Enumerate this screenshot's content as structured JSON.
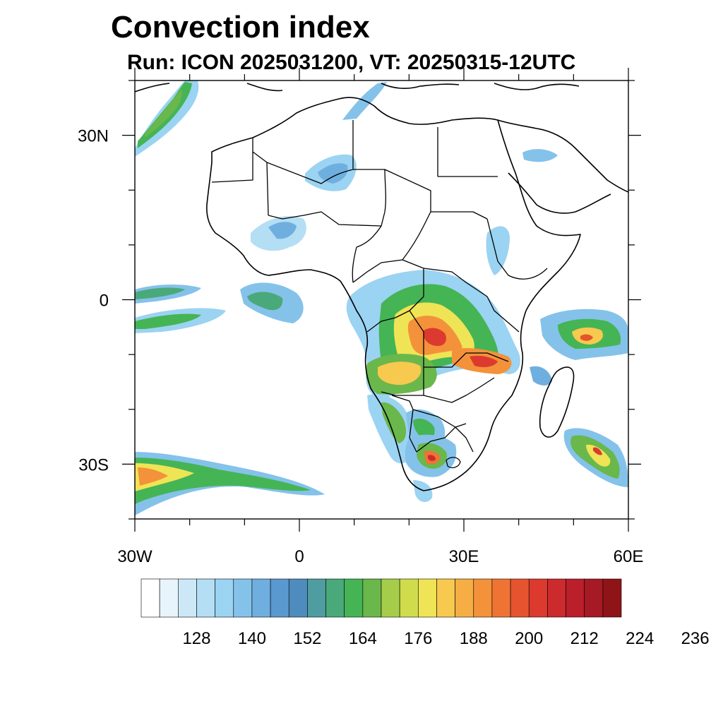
{
  "title": "Convection index",
  "subtitle": "Run: ICON 2025031200,  VT: 20250315-12UTC",
  "map": {
    "lon_range": [
      -30,
      60
    ],
    "lat_range": [
      -40,
      40
    ],
    "lon_ticks": [
      {
        "value": -30,
        "label": "30W"
      },
      {
        "value": 0,
        "label": "0"
      },
      {
        "value": 30,
        "label": "30E"
      },
      {
        "value": 60,
        "label": "60E"
      }
    ],
    "lat_ticks": [
      {
        "value": 30,
        "label": "30N"
      },
      {
        "value": 0,
        "label": "0"
      },
      {
        "value": -30,
        "label": "30S"
      }
    ]
  },
  "colorbar": {
    "colors": [
      "#ffffff",
      "#e8f4fb",
      "#cce8f6",
      "#b4def4",
      "#9bd3f2",
      "#84c2ea",
      "#6fafe0",
      "#5a98d0",
      "#4e8cbe",
      "#4f9da0",
      "#4aa97a",
      "#45b455",
      "#6ab74b",
      "#a6cd4a",
      "#d0dc4c",
      "#efe455",
      "#f7c94e",
      "#f6ae44",
      "#f3923a",
      "#ef7434",
      "#e5542f",
      "#dc3a2e",
      "#cc2a2d",
      "#ba1f2a",
      "#a51a24",
      "#8e1418"
    ],
    "labels": [
      "128",
      "140",
      "152",
      "164",
      "176",
      "188",
      "200",
      "212",
      "224",
      "236"
    ]
  },
  "colors": {
    "coast": "#000000",
    "background": "#ffffff"
  }
}
